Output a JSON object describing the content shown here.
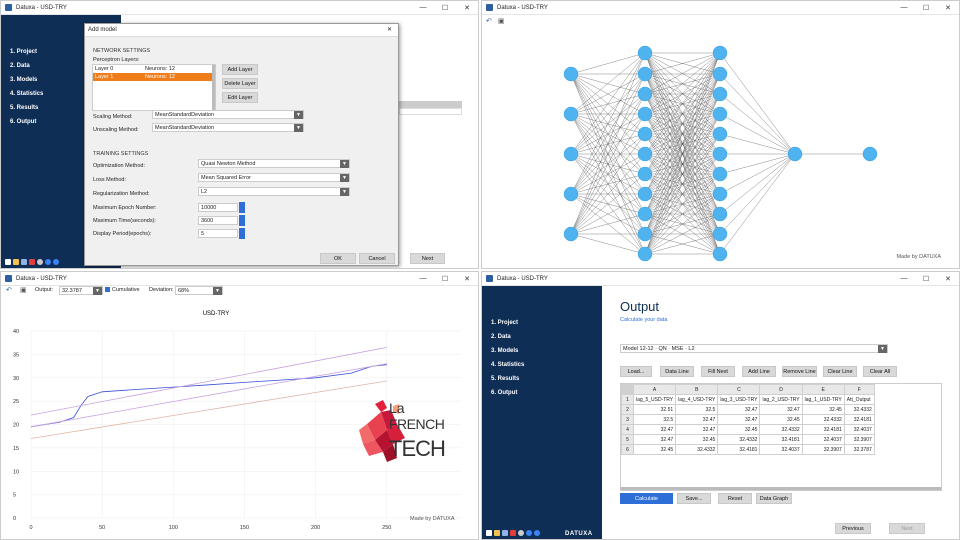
{
  "windows": {
    "tl": {
      "title": "Datuxa - USD-TRY"
    },
    "tr": {
      "title": "Datuxa - USD-TRY",
      "made_by": "Made by DATUXA"
    },
    "bl": {
      "title": "Datuxa - USD-TRY",
      "made_by": "Made by DATUXA"
    },
    "br": {
      "title": "Datuxa - USD-TRY",
      "brand": "DATUXA"
    }
  },
  "nav": [
    "1. Project",
    "2. Data",
    "3. Models",
    "4. Statistics",
    "5. Results",
    "6. Output"
  ],
  "dialog": {
    "title": "Add model",
    "network_settings": "NETWORK SETTINGS",
    "perceptron_layers": "Perceptron Layers:",
    "layers": [
      {
        "name": "Layer 0",
        "neurons": "Neurons: 12"
      },
      {
        "name": "Layer 1",
        "neurons": "Neurons: 12"
      }
    ],
    "add_layer": "Add Layer",
    "delete_layer": "Delete Layer",
    "edit_layer": "Edit Layer",
    "scaling_label": "Scaling Method:",
    "scaling_value": "MeanStandardDeviation",
    "unscaling_label": "Unscaling Method:",
    "unscaling_value": "MeanStandardDeviation",
    "training_settings": "TRAINING SETTINGS",
    "opt_label": "Optimization Method:",
    "opt_value": "Quasi Newton Method",
    "loss_label": "Loss Method:",
    "loss_value": "Mean Squared Error",
    "reg_label": "Regularization Method:",
    "reg_value": "L2",
    "epoch_label": "Maximum Epoch Number:",
    "epoch_value": "10000",
    "time_label": "Maximum Time(seconds):",
    "time_value": "3600",
    "period_label": "Display Period(epochs):",
    "period_value": "5",
    "ok": "OK",
    "cancel": "Cancel",
    "next": "Next"
  },
  "chart_toolbar": {
    "output_label": "Output:",
    "output_value": "32.3787",
    "cumulative": "Cumulative",
    "deviation_label": "Deviation:",
    "deviation_value": "68%"
  },
  "chart_data": {
    "type": "line",
    "title": "USD-TRY",
    "xlim": [
      0,
      260
    ],
    "ylim": [
      0,
      40
    ],
    "x_ticks": [
      "0",
      "50",
      "100",
      "150",
      "200",
      "250"
    ],
    "y_ticks": [
      "0",
      "5",
      "10",
      "15",
      "20",
      "25",
      "30",
      "35",
      "40"
    ],
    "series": [
      {
        "color": "#3a4fd6",
        "points": [
          [
            0,
            19.5
          ],
          [
            10,
            20
          ],
          [
            20,
            20.5
          ],
          [
            30,
            21.5
          ],
          [
            35,
            24
          ],
          [
            40,
            26
          ],
          [
            50,
            27
          ],
          [
            75,
            27.5
          ],
          [
            100,
            28
          ],
          [
            125,
            28.5
          ],
          [
            150,
            29
          ],
          [
            175,
            29.5
          ],
          [
            200,
            30
          ],
          [
            225,
            31
          ],
          [
            240,
            32.5
          ],
          [
            250,
            32.8
          ]
        ]
      },
      {
        "color": "#c9a2e0",
        "points": [
          [
            0,
            22
          ],
          [
            250,
            36.5
          ]
        ]
      },
      {
        "color": "#e0b6a8",
        "points": [
          [
            0,
            17
          ],
          [
            250,
            29.3
          ]
        ]
      },
      {
        "color": "#c9a2e0",
        "points": [
          [
            0,
            19.5
          ],
          [
            250,
            33
          ]
        ]
      }
    ]
  },
  "output": {
    "heading": "Output",
    "subheading": "Calculate your data",
    "model_value": "Model 12-12 · QN · MSE · L2",
    "buttons": [
      "Load...",
      "Data Line",
      "Fill Next",
      "Add Line",
      "Remove Line",
      "Clear Line",
      "Clear All"
    ],
    "col_letters": [
      "A",
      "B",
      "C",
      "D",
      "E",
      "F"
    ],
    "headers": [
      "lag_5_USD-TRY",
      "lag_4_USD-TRY",
      "lag_3_USD-TRY",
      "lag_2_USD-TRY",
      "lag_1_USD-TRY",
      "Att_Output"
    ],
    "rows": [
      [
        "32.51",
        "32.5",
        "32.47",
        "32.47",
        "32.45",
        "32.4332"
      ],
      [
        "32.5",
        "32.47",
        "32.47",
        "32.45",
        "32.4332",
        "32.4181"
      ],
      [
        "32.47",
        "32.47",
        "32.45",
        "32.4332",
        "32.4181",
        "32.4037"
      ],
      [
        "32.47",
        "32.45",
        "32.4332",
        "32.4181",
        "32.4037",
        "32.3907"
      ],
      [
        "32.45",
        "32.4332",
        "32.4181",
        "32.4037",
        "32.3907",
        "32.3787"
      ]
    ],
    "calculate": "Calculate",
    "save": "Save...",
    "reset": "Reset",
    "data_graph": "Data Graph",
    "previous": "Previous",
    "next": "Next"
  },
  "logo": {
    "line1": "La",
    "line2": "FRENCH",
    "line3": "TECH"
  }
}
